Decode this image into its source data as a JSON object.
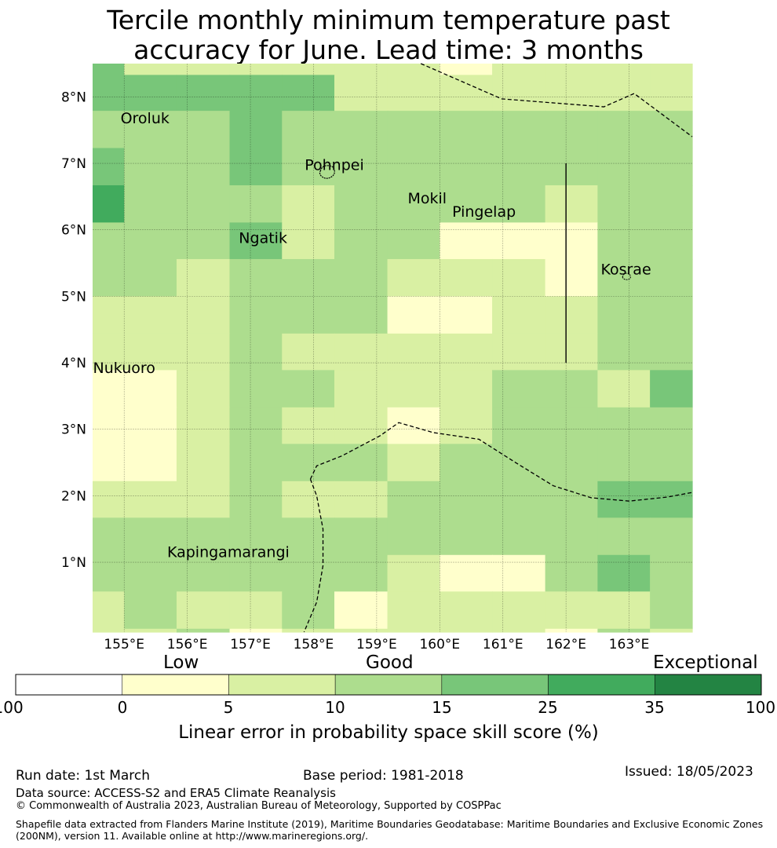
{
  "title": {
    "line1": "Tercile monthly minimum temperature past",
    "line2": "accuracy for June. Lead time: 3 months"
  },
  "map": {
    "lon_min": 154.5,
    "lon_max": 164.0,
    "lat_min": -0.05,
    "lat_max": 8.5,
    "x_ticks": [
      {
        "value": 155,
        "label": "155°E"
      },
      {
        "value": 156,
        "label": "156°E"
      },
      {
        "value": 157,
        "label": "157°E"
      },
      {
        "value": 158,
        "label": "158°E"
      },
      {
        "value": 159,
        "label": "159°E"
      },
      {
        "value": 160,
        "label": "160°E"
      },
      {
        "value": 161,
        "label": "161°E"
      },
      {
        "value": 162,
        "label": "162°E"
      },
      {
        "value": 163,
        "label": "163°E"
      }
    ],
    "y_ticks": [
      {
        "value": 1,
        "label": "1°N"
      },
      {
        "value": 2,
        "label": "2°N"
      },
      {
        "value": 3,
        "label": "3°N"
      },
      {
        "value": 4,
        "label": "4°N"
      },
      {
        "value": 5,
        "label": "5°N"
      },
      {
        "value": 6,
        "label": "6°N"
      },
      {
        "value": 7,
        "label": "7°N"
      },
      {
        "value": 8,
        "label": "8°N"
      }
    ],
    "grid": {
      "col_edges_lon": [
        154.5,
        155.0,
        155.83,
        156.67,
        157.5,
        158.33,
        159.17,
        160.0,
        160.83,
        161.67,
        162.5,
        163.33,
        164.0
      ],
      "row_edges_lat": [
        8.5,
        8.33,
        7.79,
        7.23,
        6.67,
        6.11,
        5.56,
        5.0,
        4.44,
        3.89,
        3.33,
        2.78,
        2.22,
        1.67,
        1.11,
        0.56,
        0.0,
        -0.05
      ],
      "cells": [
        [
          4,
          2,
          2,
          2,
          2,
          2,
          2,
          1,
          2,
          2,
          2,
          2,
          2
        ],
        [
          4,
          4,
          4,
          4,
          4,
          2,
          2,
          2,
          2,
          2,
          2,
          2,
          2
        ],
        [
          3,
          3,
          3,
          4,
          3,
          3,
          3,
          3,
          3,
          3,
          3,
          3,
          1
        ],
        [
          4,
          3,
          3,
          4,
          3,
          3,
          3,
          3,
          3,
          3,
          3,
          3,
          3
        ],
        [
          5,
          3,
          3,
          3,
          2,
          3,
          3,
          3,
          3,
          2,
          3,
          3,
          3
        ],
        [
          3,
          3,
          3,
          4,
          2,
          3,
          3,
          1,
          1,
          1,
          3,
          3,
          3
        ],
        [
          3,
          3,
          2,
          3,
          3,
          3,
          2,
          2,
          2,
          1,
          3,
          3,
          3
        ],
        [
          2,
          2,
          2,
          3,
          3,
          3,
          1,
          1,
          2,
          2,
          3,
          3,
          3
        ],
        [
          2,
          2,
          2,
          3,
          2,
          2,
          2,
          2,
          2,
          2,
          3,
          3,
          3
        ],
        [
          1,
          1,
          2,
          3,
          3,
          2,
          2,
          2,
          3,
          3,
          2,
          4,
          3
        ],
        [
          1,
          1,
          2,
          3,
          2,
          2,
          1,
          2,
          3,
          3,
          3,
          3,
          3
        ],
        [
          1,
          1,
          2,
          3,
          3,
          3,
          2,
          3,
          3,
          3,
          3,
          3,
          3
        ],
        [
          2,
          2,
          2,
          3,
          2,
          2,
          3,
          3,
          3,
          3,
          4,
          4,
          4
        ],
        [
          3,
          3,
          3,
          3,
          3,
          3,
          3,
          3,
          3,
          3,
          3,
          3,
          4
        ],
        [
          3,
          3,
          3,
          3,
          3,
          3,
          2,
          1,
          1,
          3,
          4,
          3,
          3
        ],
        [
          2,
          3,
          2,
          2,
          3,
          1,
          2,
          2,
          2,
          2,
          2,
          3,
          3
        ],
        [
          2,
          2,
          3,
          1,
          2,
          2,
          2,
          2,
          2,
          1,
          3,
          2,
          3
        ]
      ]
    },
    "places": [
      {
        "name": "Oroluk",
        "lon": 155.33,
        "lat": 7.6
      },
      {
        "name": "Pohnpei",
        "lon": 158.33,
        "lat": 6.9
      },
      {
        "name": "Mokil",
        "lon": 159.8,
        "lat": 6.4
      },
      {
        "name": "Pingelap",
        "lon": 160.7,
        "lat": 6.2
      },
      {
        "name": "Ngatik",
        "lon": 157.2,
        "lat": 5.8
      },
      {
        "name": "Kosrae",
        "lon": 162.95,
        "lat": 5.33
      },
      {
        "name": "Nukuoro",
        "lon": 155.0,
        "lat": 3.85
      },
      {
        "name": "Kapingamarangi",
        "lon": 156.65,
        "lat": 1.08
      }
    ],
    "boundaries": [
      [
        [
          159.7,
          8.5
        ],
        [
          160.98,
          7.97
        ],
        [
          162.6,
          7.85
        ],
        [
          163.08,
          8.05
        ],
        [
          164.0,
          7.4
        ]
      ],
      [
        [
          157.95,
          2.25
        ],
        [
          158.05,
          2.45
        ],
        [
          158.45,
          2.6
        ],
        [
          159.05,
          2.9
        ],
        [
          159.35,
          3.1
        ],
        [
          159.9,
          2.95
        ],
        [
          160.62,
          2.85
        ],
        [
          161.2,
          2.5
        ],
        [
          161.8,
          2.15
        ],
        [
          162.4,
          1.97
        ],
        [
          163.0,
          1.92
        ],
        [
          163.6,
          1.98
        ],
        [
          164.0,
          2.05
        ]
      ],
      [
        [
          157.95,
          2.25
        ],
        [
          158.05,
          2.0
        ],
        [
          158.15,
          1.5
        ],
        [
          158.15,
          0.95
        ],
        [
          158.05,
          0.4
        ],
        [
          157.85,
          -0.05
        ]
      ]
    ],
    "kosrae_line": [
      [
        162.0,
        7.0
      ],
      [
        162.0,
        4.0
      ]
    ]
  },
  "colorbar": {
    "category_labels": [
      "Low",
      "Good",
      "Exceptional"
    ],
    "ticks": [
      "-100",
      "0",
      "5",
      "10",
      "15",
      "25",
      "35",
      "100"
    ],
    "colors": [
      "#ffffff",
      "#ffffcc",
      "#d9f0a3",
      "#addd8e",
      "#78c679",
      "#41ab5d",
      "#238443"
    ],
    "title": "Linear error in probability space skill score (%)"
  },
  "footer": {
    "run_date": "Run date: 1st March",
    "base_period": "Base period: 1981-2018",
    "issued": "Issued: 18/05/2023",
    "data_source": "Data source: ACCESS-S2 and ERA5 Climate Reanalysis",
    "copyright": "© Commonwealth of Australia 2023, Australian Bureau of Meteorology, Supported by COSPPac",
    "shapefile": "Shapefile data extracted from Flanders Marine Institute (2019), Maritime Boundaries Geodatabase: Maritime Boundaries and Exclusive Economic Zones (200NM), version 11. Available online at http://www.marineregions.org/."
  }
}
